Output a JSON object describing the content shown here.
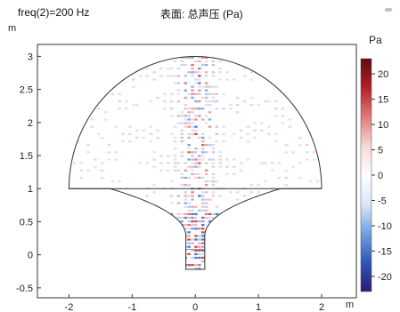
{
  "header": {
    "param_label": "freq(2)=200 Hz",
    "plot_title": "表面: 总声压 (Pa)"
  },
  "axes": {
    "y_unit": "m",
    "x_unit": "m",
    "x_ticks": [
      "-2",
      "-1",
      "0",
      "1",
      "2"
    ],
    "y_ticks": [
      "3",
      "2.5",
      "2",
      "1.5",
      "1",
      "0.5",
      "0",
      "-0.5"
    ],
    "xlim": [
      -2.5,
      2.55
    ],
    "ylim": [
      -0.65,
      3.18
    ]
  },
  "colorbar": {
    "unit": "Pa",
    "ticks": [
      "20",
      "15",
      "10",
      "5",
      "0",
      "-5",
      "-10",
      "-15",
      "-20"
    ],
    "range": [
      -23,
      23
    ],
    "colors": [
      "#2c1b75",
      "#2f55b8",
      "#6ea1df",
      "#d9e7f8",
      "#ffffff",
      "#f7d8d8",
      "#e07a7a",
      "#b3202a",
      "#5d0a12"
    ]
  },
  "colors": {
    "outline": "#333333",
    "positive": "#cf3d45",
    "negative": "#3e73c9"
  }
}
